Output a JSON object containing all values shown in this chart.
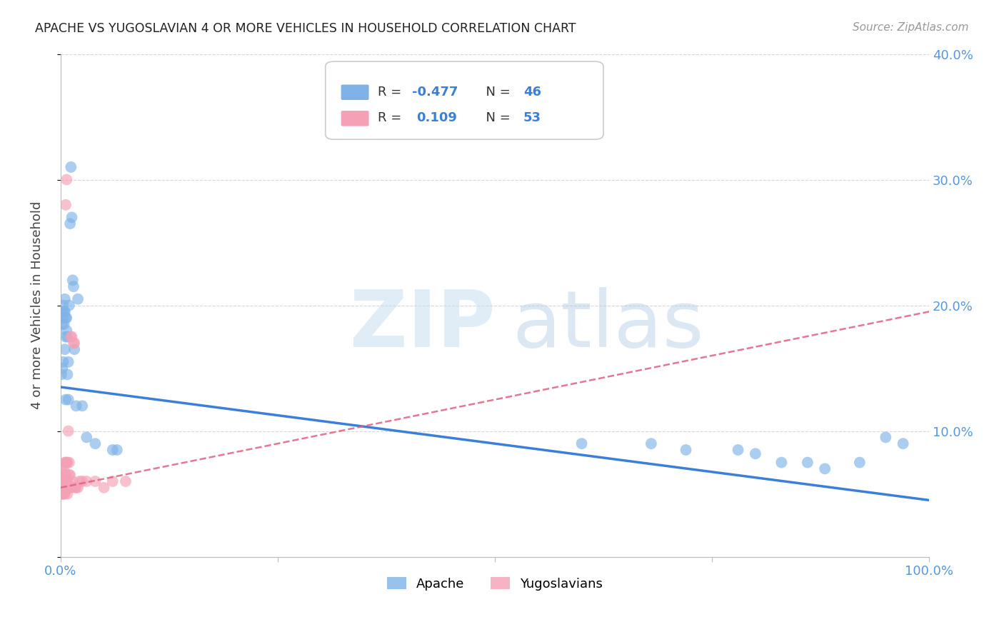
{
  "title": "APACHE VS YUGOSLAVIAN 4 OR MORE VEHICLES IN HOUSEHOLD CORRELATION CHART",
  "source": "Source: ZipAtlas.com",
  "ylabel": "4 or more Vehicles in Household",
  "xlim": [
    0,
    1.0
  ],
  "ylim": [
    0,
    0.4
  ],
  "apache_R": -0.477,
  "apache_N": 46,
  "yugoslav_R": 0.109,
  "yugoslav_N": 53,
  "background_color": "#ffffff",
  "apache_color": "#7fb3e8",
  "yugoslav_color": "#f4a0b5",
  "apache_line_color": "#3a7fd9",
  "yugoslav_line_color": "#e06080",
  "grid_color": "#cccccc",
  "apache_line_y0": 0.135,
  "apache_line_y1": 0.045,
  "yugoslav_line_y0": 0.055,
  "yugoslav_line_y1": 0.195,
  "apache_points_x": [
    0.001,
    0.002,
    0.002,
    0.002,
    0.003,
    0.003,
    0.003,
    0.004,
    0.004,
    0.005,
    0.005,
    0.005,
    0.006,
    0.006,
    0.006,
    0.007,
    0.007,
    0.008,
    0.008,
    0.009,
    0.009,
    0.01,
    0.011,
    0.012,
    0.013,
    0.014,
    0.015,
    0.016,
    0.018,
    0.02,
    0.025,
    0.03,
    0.04,
    0.06,
    0.065,
    0.6,
    0.68,
    0.72,
    0.78,
    0.8,
    0.83,
    0.86,
    0.88,
    0.92,
    0.95,
    0.97
  ],
  "apache_points_y": [
    0.145,
    0.195,
    0.185,
    0.15,
    0.2,
    0.19,
    0.155,
    0.195,
    0.185,
    0.205,
    0.195,
    0.165,
    0.19,
    0.175,
    0.125,
    0.19,
    0.18,
    0.175,
    0.145,
    0.155,
    0.125,
    0.2,
    0.265,
    0.31,
    0.27,
    0.22,
    0.215,
    0.165,
    0.12,
    0.205,
    0.12,
    0.095,
    0.09,
    0.085,
    0.085,
    0.09,
    0.09,
    0.085,
    0.085,
    0.082,
    0.075,
    0.075,
    0.07,
    0.075,
    0.095,
    0.09
  ],
  "yugoslav_points_x": [
    0.001,
    0.001,
    0.001,
    0.002,
    0.002,
    0.002,
    0.002,
    0.003,
    0.003,
    0.003,
    0.003,
    0.003,
    0.004,
    0.004,
    0.004,
    0.004,
    0.005,
    0.005,
    0.005,
    0.005,
    0.005,
    0.006,
    0.006,
    0.006,
    0.006,
    0.007,
    0.007,
    0.007,
    0.008,
    0.008,
    0.008,
    0.009,
    0.009,
    0.01,
    0.01,
    0.01,
    0.011,
    0.012,
    0.012,
    0.013,
    0.014,
    0.015,
    0.016,
    0.017,
    0.018,
    0.02,
    0.022,
    0.025,
    0.03,
    0.04,
    0.05,
    0.06,
    0.075
  ],
  "yugoslav_points_y": [
    0.06,
    0.055,
    0.05,
    0.07,
    0.065,
    0.055,
    0.05,
    0.065,
    0.06,
    0.055,
    0.05,
    0.055,
    0.07,
    0.065,
    0.055,
    0.05,
    0.075,
    0.065,
    0.06,
    0.055,
    0.05,
    0.28,
    0.075,
    0.065,
    0.055,
    0.3,
    0.075,
    0.06,
    0.075,
    0.06,
    0.05,
    0.1,
    0.055,
    0.075,
    0.065,
    0.055,
    0.065,
    0.175,
    0.055,
    0.175,
    0.06,
    0.17,
    0.17,
    0.055,
    0.055,
    0.055,
    0.06,
    0.06,
    0.06,
    0.06,
    0.055,
    0.06,
    0.06
  ]
}
